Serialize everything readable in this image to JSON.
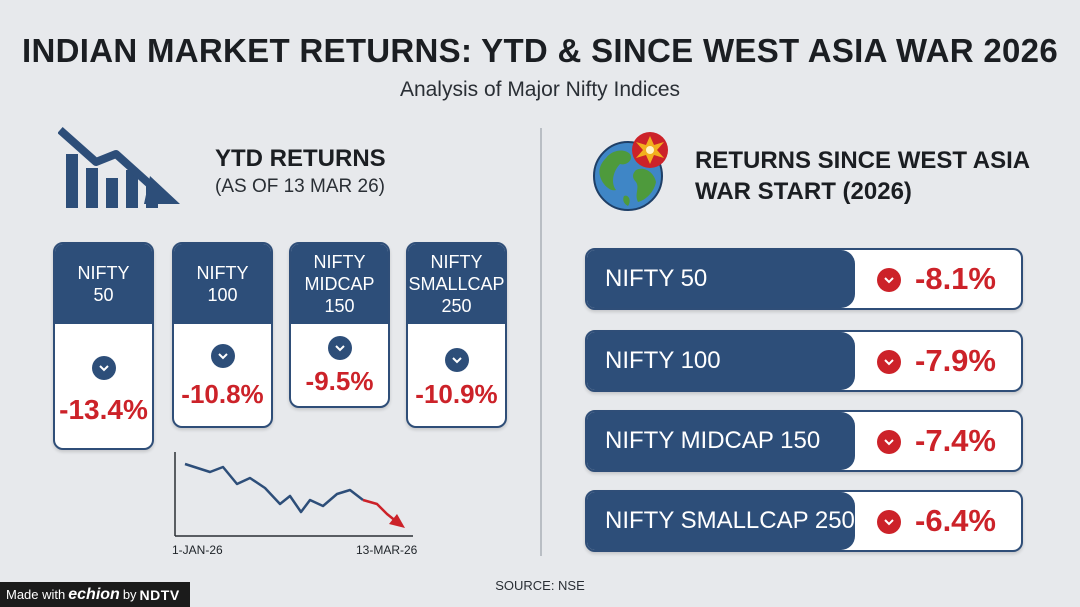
{
  "header": {
    "title": "INDIAN MARKET RETURNS: YTD & SINCE WEST ASIA WAR 2026",
    "subtitle": "Analysis of Major Nifty Indices"
  },
  "ytd": {
    "title": "YTD RETURNS",
    "subtitle": "(AS OF 13 MAR 26)",
    "cards": [
      {
        "line1": "NIFTY",
        "line2": "50",
        "line3": "",
        "value": "-13.4%"
      },
      {
        "line1": "NIFTY",
        "line2": "100",
        "line3": "",
        "value": "-10.8%"
      },
      {
        "line1": "NIFTY",
        "line2": "MIDCAP",
        "line3": "150",
        "value": "-9.5%"
      },
      {
        "line1": "NIFTY",
        "line2": "SMALLCAP",
        "line3": "250",
        "value": "-10.9%"
      }
    ],
    "trend_chart": {
      "x_start": "1-JAN-26",
      "x_end": "13-MAR-26"
    }
  },
  "war": {
    "title_line1": "RETURNS SINCE WEST ASIA",
    "title_line2": "WAR START (2026)",
    "rows": [
      {
        "label": "NIFTY 50",
        "value": "-8.1%"
      },
      {
        "label": "NIFTY 100",
        "value": "-7.9%"
      },
      {
        "label": "NIFTY MIDCAP 150",
        "value": "-7.4%"
      },
      {
        "label": "NIFTY SMALLCAP 250",
        "value": "-6.4%"
      }
    ]
  },
  "footer": {
    "source": "SOURCE: NSE",
    "badge_prefix": "Made with",
    "badge_brand": "echion",
    "badge_by": "by",
    "badge_org": "NDTV"
  },
  "colors": {
    "navy": "#2d4e79",
    "red": "#cc2229",
    "background": "#e7e9ec"
  },
  "icons": {
    "trend": "declining-bar-chart-icon",
    "globe": "globe-explosion-icon",
    "down": "chevron-down-icon"
  }
}
